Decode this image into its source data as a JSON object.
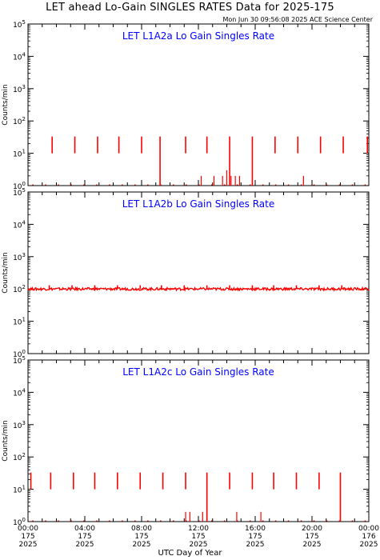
{
  "header": {
    "title": "LET ahead Lo-Gain SINGLES RATES Data for 2025-175",
    "stamp": "Mon Jun 30 09:56:08 2025 ACE Science Center"
  },
  "colors": {
    "data": "#ff0000",
    "panel_title": "#0000ff",
    "axis": "#000000"
  },
  "chart_data": [
    {
      "type": "line",
      "title": "LET L1A2a Lo Gain Singles Rate",
      "ylabel": "Counts/min",
      "yscale": "log",
      "ylim": [
        1,
        100000
      ],
      "ytick_labels": [
        "10^0",
        "10^1",
        "10^2",
        "10^3",
        "10^4",
        "10^5"
      ],
      "series": [
        {
          "baseline": 1,
          "spikes": [
            {
              "x": 1.7,
              "low": 10,
              "high": 33
            },
            {
              "x": 3.3,
              "low": 10,
              "high": 33
            },
            {
              "x": 4.9,
              "low": 10,
              "high": 33
            },
            {
              "x": 6.4,
              "low": 10,
              "high": 33
            },
            {
              "x": 8.0,
              "low": 10,
              "high": 33
            },
            {
              "x": 9.3,
              "low": 1,
              "high": 33
            },
            {
              "x": 11.1,
              "low": 10,
              "high": 33
            },
            {
              "x": 12.6,
              "low": 10,
              "high": 33
            },
            {
              "x": 14.2,
              "low": 1,
              "high": 33
            },
            {
              "x": 15.8,
              "low": 1,
              "high": 33
            },
            {
              "x": 17.4,
              "low": 10,
              "high": 33
            },
            {
              "x": 19.0,
              "low": 10,
              "high": 33
            },
            {
              "x": 20.6,
              "low": 10,
              "high": 33
            },
            {
              "x": 22.2,
              "low": 10,
              "high": 33
            },
            {
              "x": 23.9,
              "low": 10,
              "high": 33
            }
          ],
          "bars": [
            {
              "x": 12.2,
              "high": 2
            },
            {
              "x": 13.1,
              "high": 2
            },
            {
              "x": 13.7,
              "high": 2
            },
            {
              "x": 14.0,
              "high": 3
            },
            {
              "x": 14.3,
              "high": 2
            },
            {
              "x": 14.6,
              "high": 2
            },
            {
              "x": 14.9,
              "high": 2
            },
            {
              "x": 19.4,
              "high": 2
            }
          ]
        }
      ]
    },
    {
      "type": "line",
      "title": "LET L1A2b Lo Gain Singles Rate",
      "ylabel": "Counts/min",
      "yscale": "log",
      "ylim": [
        1,
        100000
      ],
      "ytick_labels": [
        "10^0",
        "10^1",
        "10^2",
        "10^3",
        "10^4",
        "10^5"
      ],
      "series": [
        {
          "baseline": 100,
          "spikes": [
            {
              "x": 1.5,
              "low": 100,
              "high": 130
            },
            {
              "x": 3.1,
              "low": 100,
              "high": 130
            },
            {
              "x": 4.7,
              "low": 100,
              "high": 130
            },
            {
              "x": 6.3,
              "low": 100,
              "high": 130
            },
            {
              "x": 7.9,
              "low": 100,
              "high": 130
            },
            {
              "x": 9.4,
              "low": 100,
              "high": 130
            },
            {
              "x": 11.0,
              "low": 100,
              "high": 130
            },
            {
              "x": 12.6,
              "low": 100,
              "high": 130
            },
            {
              "x": 14.2,
              "low": 100,
              "high": 130
            },
            {
              "x": 15.8,
              "low": 100,
              "high": 130
            },
            {
              "x": 17.3,
              "low": 100,
              "high": 130
            },
            {
              "x": 18.9,
              "low": 100,
              "high": 130
            },
            {
              "x": 20.5,
              "low": 100,
              "high": 130
            },
            {
              "x": 22.1,
              "low": 100,
              "high": 130
            }
          ],
          "bars": []
        }
      ]
    },
    {
      "type": "line",
      "title": "LET L1A2c Lo Gain Singles Rate",
      "ylabel": "Counts/min",
      "yscale": "log",
      "ylim": [
        1,
        100000
      ],
      "ytick_labels": [
        "10^0",
        "10^1",
        "10^2",
        "10^3",
        "10^4",
        "10^5"
      ],
      "series": [
        {
          "baseline": 1,
          "spikes": [
            {
              "x": 0.2,
              "low": 10,
              "high": 33
            },
            {
              "x": 1.6,
              "low": 10,
              "high": 33
            },
            {
              "x": 3.2,
              "low": 10,
              "high": 33
            },
            {
              "x": 4.7,
              "low": 10,
              "high": 33
            },
            {
              "x": 6.3,
              "low": 10,
              "high": 33
            },
            {
              "x": 7.9,
              "low": 10,
              "high": 33
            },
            {
              "x": 9.5,
              "low": 10,
              "high": 33
            },
            {
              "x": 11.1,
              "low": 10,
              "high": 33
            },
            {
              "x": 12.6,
              "low": 1,
              "high": 33
            },
            {
              "x": 14.2,
              "low": 10,
              "high": 33
            },
            {
              "x": 15.8,
              "low": 10,
              "high": 33
            },
            {
              "x": 17.3,
              "low": 10,
              "high": 33
            },
            {
              "x": 18.9,
              "low": 10,
              "high": 33
            },
            {
              "x": 20.5,
              "low": 10,
              "high": 33
            },
            {
              "x": 22.0,
              "low": 1,
              "high": 33
            }
          ],
          "bars": [
            {
              "x": 11.1,
              "high": 2
            },
            {
              "x": 11.4,
              "high": 2
            },
            {
              "x": 12.3,
              "high": 2
            },
            {
              "x": 14.7,
              "high": 2
            },
            {
              "x": 16.4,
              "high": 2
            }
          ]
        }
      ]
    }
  ],
  "xaxis": {
    "xlim": [
      0,
      24
    ],
    "xlabel": "UTC Day of Year",
    "major_ticks": [
      {
        "x": 0,
        "time": "00:00",
        "doy": "175",
        "year": "2025"
      },
      {
        "x": 4,
        "time": "04:00",
        "doy": "175",
        "year": "2025"
      },
      {
        "x": 8,
        "time": "08:00",
        "doy": "175",
        "year": "2025"
      },
      {
        "x": 12,
        "time": "12:00",
        "doy": "175",
        "year": "2025"
      },
      {
        "x": 16,
        "time": "16:00",
        "doy": "175",
        "year": "2025"
      },
      {
        "x": 20,
        "time": "20:00",
        "doy": "175",
        "year": "2025"
      },
      {
        "x": 24,
        "time": "00:00",
        "doy": "176",
        "year": "2025"
      }
    ]
  }
}
